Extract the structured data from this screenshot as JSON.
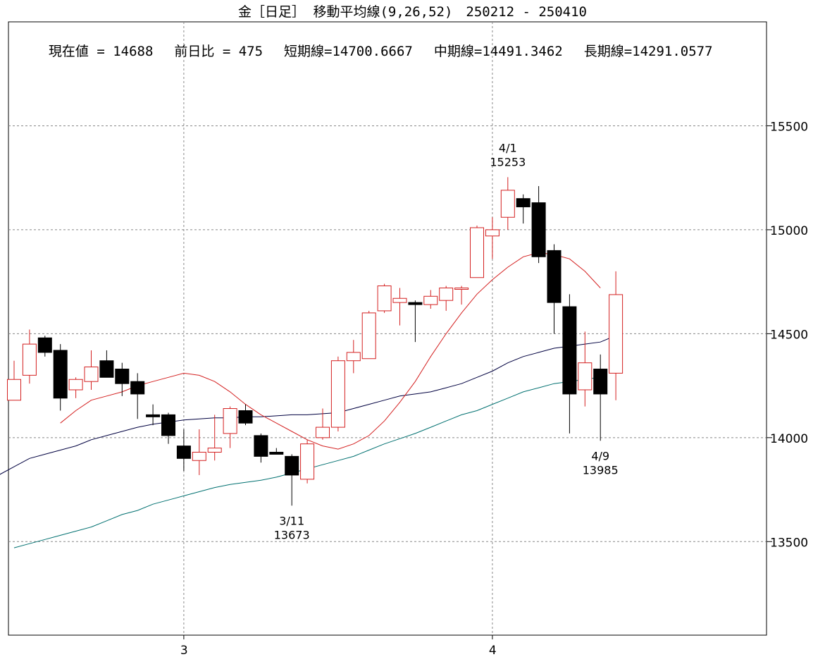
{
  "header": {
    "title": "金［日足］ 移動平均線(9,26,52)　250212 - 250410",
    "current_value": "現在値 = 14688",
    "prev_day_change": "前日比 = 475",
    "short_ma": "短期線=14700.6667",
    "mid_ma": "中期線=14491.3462",
    "long_ma": "長期線=14291.0577"
  },
  "colors": {
    "up": "#d42020",
    "down": "#000000",
    "short_ma": "#d42020",
    "mid_ma": "#000040",
    "long_ma": "#007070",
    "grid": "#888888"
  },
  "chart_data": {
    "type": "candlestick",
    "ylim": [
      13050,
      16000
    ],
    "y_ticks": [
      "15500",
      "15000",
      "14500",
      "14000",
      "13500"
    ],
    "x_ticks": [
      "3",
      "4"
    ],
    "x_tick_index": [
      11,
      31
    ],
    "ma_periods": [
      9,
      26,
      52
    ],
    "candles": [
      {
        "o": 14180,
        "h": 14370,
        "l": 14180,
        "c": 14280
      },
      {
        "o": 14300,
        "h": 14520,
        "l": 14260,
        "c": 14450
      },
      {
        "o": 14480,
        "h": 14490,
        "l": 14390,
        "c": 14410
      },
      {
        "o": 14420,
        "h": 14450,
        "l": 14130,
        "c": 14190
      },
      {
        "o": 14230,
        "h": 14290,
        "l": 14190,
        "c": 14280
      },
      {
        "o": 14270,
        "h": 14420,
        "l": 14230,
        "c": 14340
      },
      {
        "o": 14370,
        "h": 14420,
        "l": 14290,
        "c": 14290
      },
      {
        "o": 14330,
        "h": 14360,
        "l": 14200,
        "c": 14260
      },
      {
        "o": 14270,
        "h": 14310,
        "l": 14090,
        "c": 14210
      },
      {
        "o": 14110,
        "h": 14160,
        "l": 14060,
        "c": 14100
      },
      {
        "o": 14110,
        "h": 14120,
        "l": 13970,
        "c": 14010
      },
      {
        "o": 13960,
        "h": 14040,
        "l": 13840,
        "c": 13900
      },
      {
        "o": 13890,
        "h": 14040,
        "l": 13820,
        "c": 13930
      },
      {
        "o": 13930,
        "h": 14110,
        "l": 13890,
        "c": 13950
      },
      {
        "o": 14020,
        "h": 14150,
        "l": 13950,
        "c": 14140
      },
      {
        "o": 14130,
        "h": 14160,
        "l": 14060,
        "c": 14070
      },
      {
        "o": 14010,
        "h": 14020,
        "l": 13880,
        "c": 13910
      },
      {
        "o": 13930,
        "h": 13950,
        "l": 13920,
        "c": 13920
      },
      {
        "o": 13910,
        "h": 13920,
        "l": 13673,
        "c": 13820
      },
      {
        "o": 13800,
        "h": 13990,
        "l": 13780,
        "c": 13970
      },
      {
        "o": 14000,
        "h": 14140,
        "l": 13990,
        "c": 14050
      },
      {
        "o": 14050,
        "h": 14390,
        "l": 14030,
        "c": 14370
      },
      {
        "o": 14370,
        "h": 14470,
        "l": 14310,
        "c": 14410
      },
      {
        "o": 14380,
        "h": 14610,
        "l": 14380,
        "c": 14600
      },
      {
        "o": 14610,
        "h": 14740,
        "l": 14600,
        "c": 14730
      },
      {
        "o": 14650,
        "h": 14720,
        "l": 14540,
        "c": 14670
      },
      {
        "o": 14650,
        "h": 14660,
        "l": 14460,
        "c": 14640
      },
      {
        "o": 14640,
        "h": 14710,
        "l": 14620,
        "c": 14680
      },
      {
        "o": 14660,
        "h": 14730,
        "l": 14610,
        "c": 14720
      },
      {
        "o": 14720,
        "h": 14730,
        "l": 14640,
        "c": 14720
      },
      {
        "o": 14770,
        "h": 15020,
        "l": 14770,
        "c": 15010
      },
      {
        "o": 14970,
        "h": 15060,
        "l": 14860,
        "c": 15000
      },
      {
        "o": 15060,
        "h": 15253,
        "l": 15000,
        "c": 15190
      },
      {
        "o": 15150,
        "h": 15170,
        "l": 15030,
        "c": 15110
      },
      {
        "o": 15130,
        "h": 15210,
        "l": 14840,
        "c": 14870
      },
      {
        "o": 14900,
        "h": 14930,
        "l": 14500,
        "c": 14650
      },
      {
        "o": 14630,
        "h": 14690,
        "l": 14020,
        "c": 14210
      },
      {
        "o": 14230,
        "h": 14510,
        "l": 14150,
        "c": 14360
      },
      {
        "o": 14330,
        "h": 14400,
        "l": 13985,
        "c": 14210
      },
      {
        "o": 14310,
        "h": 14800,
        "l": 14180,
        "c": 14688
      }
    ],
    "short_ma": [
      14070,
      14130,
      14180,
      14200,
      14220,
      14250,
      14270,
      14290,
      14310,
      14300,
      14270,
      14220,
      14160,
      14110,
      14070,
      14030,
      13990,
      13960,
      13945,
      13970,
      14010,
      14080,
      14170,
      14270,
      14390,
      14500,
      14600,
      14690,
      14760,
      14820,
      14870,
      14890,
      14880,
      14860,
      14800,
      14720
    ],
    "short_ma_start": 3,
    "mid_ma": [
      13820,
      13860,
      13900,
      13920,
      13940,
      13960,
      13990,
      14010,
      14030,
      14050,
      14065,
      14075,
      14085,
      14090,
      14095,
      14095,
      14100,
      14100,
      14105,
      14110,
      14110,
      14115,
      14120,
      14140,
      14160,
      14180,
      14200,
      14210,
      14220,
      14240,
      14260,
      14290,
      14320,
      14360,
      14390,
      14410,
      14430,
      14440,
      14450,
      14460,
      14491
    ],
    "mid_ma_start": -1,
    "long_ma": [
      13470,
      13490,
      13510,
      13530,
      13550,
      13570,
      13600,
      13630,
      13650,
      13680,
      13700,
      13720,
      13740,
      13760,
      13775,
      13785,
      13795,
      13810,
      13830,
      13850,
      13870,
      13890,
      13910,
      13940,
      13970,
      13995,
      14020,
      14050,
      14080,
      14110,
      14130,
      14160,
      14190,
      14220,
      14240,
      14260,
      14270,
      14280,
      14291
    ],
    "long_ma_start": 0,
    "annotations": [
      {
        "index": 32,
        "date": "4/1",
        "value": "15253",
        "pos": "above"
      },
      {
        "index": 18,
        "date": "3/11",
        "value": "13673",
        "pos": "below"
      },
      {
        "index": 38,
        "date": "4/9",
        "value": "13985",
        "pos": "below"
      }
    ]
  }
}
